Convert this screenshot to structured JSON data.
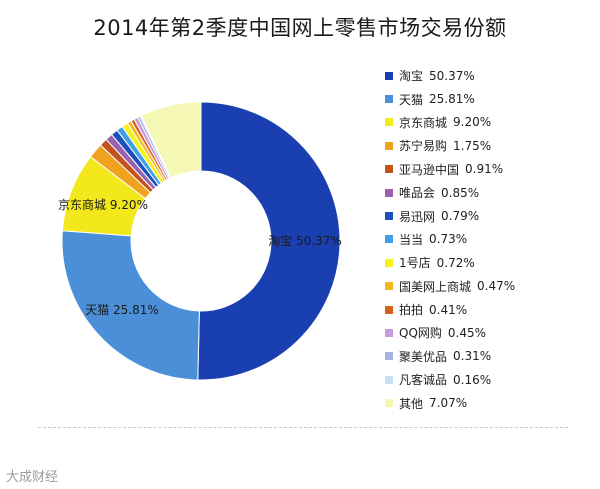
{
  "watermark": "大成财经",
  "chart_data": {
    "type": "pie",
    "donut": true,
    "title": "2014年第2季度中国网上零售市场交易份额",
    "unit": "%",
    "legend_position": "right",
    "slices": [
      {
        "name": "淘宝",
        "value": 50.37,
        "display": "50.37%",
        "color": "#1a3fb0",
        "label_on_chart": true
      },
      {
        "name": "天猫",
        "value": 25.81,
        "display": "25.81%",
        "color": "#4a8fd8",
        "label_on_chart": true
      },
      {
        "name": "京东商城",
        "value": 9.2,
        "display": "9.20%",
        "color": "#f2e81b",
        "label_on_chart": true
      },
      {
        "name": "苏宁易购",
        "value": 1.75,
        "display": "1.75%",
        "color": "#f0a21e",
        "label_on_chart": false
      },
      {
        "name": "亚马逊中国",
        "value": 0.91,
        "display": "0.91%",
        "color": "#c2531d",
        "label_on_chart": false
      },
      {
        "name": "唯品会",
        "value": 0.85,
        "display": "0.85%",
        "color": "#9b62b0",
        "label_on_chart": false
      },
      {
        "name": "易迅网",
        "value": 0.79,
        "display": "0.79%",
        "color": "#1e4fc0",
        "label_on_chart": false
      },
      {
        "name": "当当",
        "value": 0.73,
        "display": "0.73%",
        "color": "#3fa0e6",
        "label_on_chart": false
      },
      {
        "name": "1号店",
        "value": 0.72,
        "display": "0.72%",
        "color": "#f6f01c",
        "label_on_chart": false
      },
      {
        "name": "国美网上商城",
        "value": 0.47,
        "display": "0.47%",
        "color": "#f3b81f",
        "label_on_chart": false
      },
      {
        "name": "拍拍",
        "value": 0.41,
        "display": "0.41%",
        "color": "#d8601f",
        "label_on_chart": false
      },
      {
        "name": "QQ网购",
        "value": 0.45,
        "display": "0.45%",
        "color": "#c79ad8",
        "label_on_chart": false
      },
      {
        "name": "聚美优品",
        "value": 0.31,
        "display": "0.31%",
        "color": "#a8b4e0",
        "label_on_chart": false
      },
      {
        "name": "凡客诚品",
        "value": 0.16,
        "display": "0.16%",
        "color": "#c6def2",
        "label_on_chart": false
      },
      {
        "name": "其他",
        "value": 7.07,
        "display": "7.07%",
        "color": "#f4f8b4",
        "label_on_chart": false
      }
    ]
  }
}
